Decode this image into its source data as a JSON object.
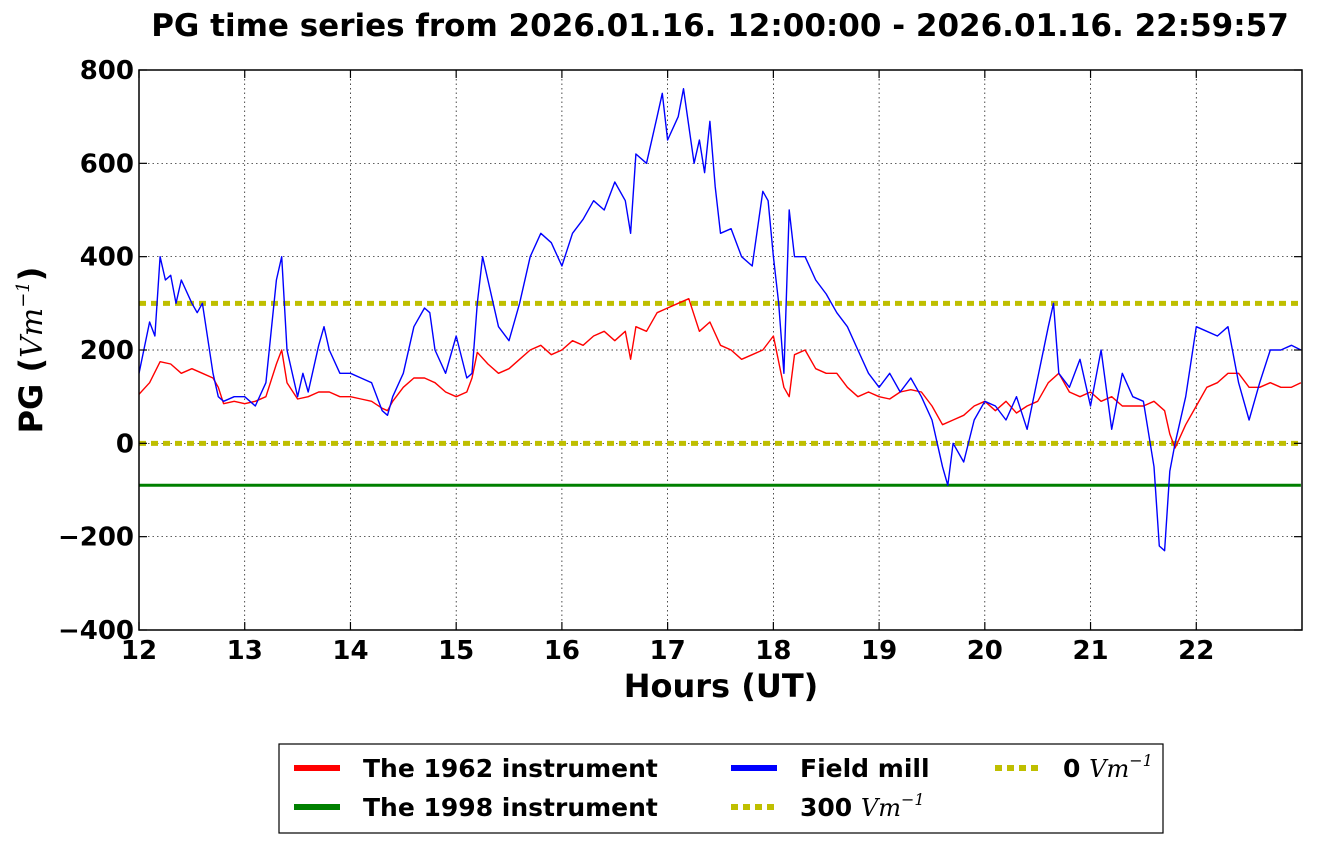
{
  "chart_data": {
    "type": "line",
    "title": "PG time series from 2026.01.16. 12:00:00 - 2026.01.16. 22:59:57",
    "xlabel": "Hours (UT)",
    "ylabel_prefix": "PG (",
    "ylabel_unit_base": "Vm",
    "ylabel_unit_exp": "−1",
    "ylabel_suffix": ")",
    "xlim": [
      12,
      23
    ],
    "ylim": [
      -400,
      800
    ],
    "xticks": [
      12,
      13,
      14,
      15,
      16,
      17,
      18,
      19,
      20,
      21,
      22
    ],
    "yticks": [
      -400,
      -200,
      0,
      200,
      400,
      600,
      800
    ],
    "xtick_labels": [
      "12",
      "13",
      "14",
      "15",
      "16",
      "17",
      "18",
      "19",
      "20",
      "21",
      "22"
    ],
    "ytick_labels": [
      "−400",
      "−200",
      "0",
      "200",
      "400",
      "600",
      "800"
    ],
    "grid": true,
    "legend_position": "bottom-center",
    "series": [
      {
        "name": "The 1962 instrument",
        "color": "#ff0000",
        "x": [
          12.0,
          12.1,
          12.2,
          12.3,
          12.4,
          12.5,
          12.6,
          12.7,
          12.75,
          12.8,
          12.9,
          13.0,
          13.1,
          13.2,
          13.3,
          13.35,
          13.4,
          13.5,
          13.6,
          13.7,
          13.8,
          13.9,
          14.0,
          14.1,
          14.2,
          14.3,
          14.35,
          14.4,
          14.5,
          14.6,
          14.7,
          14.8,
          14.9,
          15.0,
          15.1,
          15.15,
          15.2,
          15.3,
          15.4,
          15.5,
          15.6,
          15.7,
          15.8,
          15.9,
          16.0,
          16.1,
          16.2,
          16.3,
          16.4,
          16.5,
          16.6,
          16.65,
          16.7,
          16.8,
          16.9,
          17.0,
          17.1,
          17.2,
          17.3,
          17.4,
          17.5,
          17.6,
          17.7,
          17.8,
          17.9,
          18.0,
          18.1,
          18.15,
          18.2,
          18.3,
          18.4,
          18.5,
          18.6,
          18.7,
          18.8,
          18.9,
          19.0,
          19.1,
          19.2,
          19.3,
          19.4,
          19.5,
          19.6,
          19.7,
          19.8,
          19.9,
          20.0,
          20.1,
          20.2,
          20.3,
          20.4,
          20.5,
          20.6,
          20.7,
          20.8,
          20.9,
          21.0,
          21.1,
          21.2,
          21.3,
          21.4,
          21.5,
          21.6,
          21.7,
          21.75,
          21.8,
          21.9,
          22.0,
          22.1,
          22.2,
          22.3,
          22.4,
          22.5,
          22.6,
          22.7,
          22.8,
          22.9,
          22.99
        ],
        "y": [
          105,
          130,
          175,
          170,
          150,
          160,
          150,
          140,
          120,
          85,
          90,
          85,
          90,
          100,
          170,
          200,
          130,
          95,
          100,
          110,
          110,
          100,
          100,
          95,
          90,
          75,
          70,
          90,
          120,
          140,
          140,
          130,
          110,
          100,
          110,
          140,
          195,
          170,
          150,
          160,
          180,
          200,
          210,
          190,
          200,
          220,
          210,
          230,
          240,
          220,
          240,
          180,
          250,
          240,
          280,
          290,
          300,
          310,
          240,
          260,
          210,
          200,
          180,
          190,
          200,
          230,
          120,
          100,
          190,
          200,
          160,
          150,
          150,
          120,
          100,
          110,
          100,
          95,
          110,
          115,
          110,
          80,
          40,
          50,
          60,
          80,
          90,
          70,
          90,
          65,
          80,
          90,
          130,
          150,
          110,
          100,
          110,
          90,
          100,
          80,
          80,
          80,
          90,
          70,
          20,
          -10,
          40,
          80,
          120,
          130,
          150,
          150,
          120,
          120,
          130,
          120,
          120,
          130
        ]
      },
      {
        "name": "The 1998 instrument",
        "color": "#008000",
        "x": [
          12.0,
          22.99
        ],
        "y": [
          -90,
          -90
        ]
      },
      {
        "name": "Field mill",
        "color": "#0000ff",
        "x": [
          12.0,
          12.1,
          12.15,
          12.2,
          12.25,
          12.3,
          12.35,
          12.4,
          12.5,
          12.55,
          12.6,
          12.7,
          12.75,
          12.8,
          12.9,
          13.0,
          13.1,
          13.2,
          13.3,
          13.35,
          13.4,
          13.5,
          13.55,
          13.6,
          13.7,
          13.75,
          13.8,
          13.9,
          14.0,
          14.1,
          14.2,
          14.3,
          14.35,
          14.4,
          14.5,
          14.6,
          14.7,
          14.75,
          14.8,
          14.9,
          15.0,
          15.1,
          15.15,
          15.2,
          15.25,
          15.3,
          15.4,
          15.5,
          15.6,
          15.7,
          15.8,
          15.9,
          16.0,
          16.1,
          16.2,
          16.3,
          16.4,
          16.5,
          16.6,
          16.65,
          16.7,
          16.8,
          16.9,
          16.95,
          17.0,
          17.1,
          17.15,
          17.2,
          17.25,
          17.3,
          17.35,
          17.4,
          17.45,
          17.5,
          17.6,
          17.7,
          17.8,
          17.9,
          17.95,
          18.0,
          18.05,
          18.1,
          18.15,
          18.2,
          18.3,
          18.4,
          18.5,
          18.6,
          18.7,
          18.8,
          18.9,
          19.0,
          19.1,
          19.2,
          19.3,
          19.4,
          19.5,
          19.6,
          19.65,
          19.7,
          19.8,
          19.9,
          20.0,
          20.1,
          20.2,
          20.3,
          20.4,
          20.5,
          20.6,
          20.65,
          20.7,
          20.8,
          20.9,
          21.0,
          21.1,
          21.2,
          21.3,
          21.4,
          21.5,
          21.6,
          21.65,
          21.7,
          21.75,
          21.8,
          21.9,
          22.0,
          22.1,
          22.2,
          22.3,
          22.4,
          22.5,
          22.6,
          22.7,
          22.8,
          22.9,
          22.99
        ],
        "y": [
          150,
          260,
          230,
          400,
          350,
          360,
          300,
          350,
          300,
          280,
          300,
          150,
          100,
          90,
          100,
          100,
          80,
          130,
          350,
          400,
          200,
          100,
          150,
          110,
          210,
          250,
          200,
          150,
          150,
          140,
          130,
          70,
          60,
          100,
          150,
          250,
          290,
          280,
          200,
          150,
          230,
          140,
          150,
          300,
          400,
          350,
          250,
          220,
          300,
          400,
          450,
          430,
          380,
          450,
          480,
          520,
          500,
          560,
          520,
          450,
          620,
          600,
          700,
          750,
          650,
          700,
          760,
          680,
          600,
          650,
          580,
          690,
          550,
          450,
          460,
          400,
          380,
          540,
          520,
          400,
          300,
          150,
          500,
          400,
          400,
          350,
          320,
          280,
          250,
          200,
          150,
          120,
          150,
          110,
          140,
          100,
          50,
          -50,
          -90,
          0,
          -40,
          50,
          90,
          80,
          50,
          100,
          30,
          140,
          250,
          300,
          150,
          120,
          180,
          80,
          200,
          30,
          150,
          100,
          90,
          -50,
          -220,
          -230,
          -60,
          0,
          100,
          250,
          240,
          230,
          250,
          130,
          50,
          130,
          200,
          200,
          210,
          200
        ]
      }
    ],
    "reference_lines": [
      {
        "name_num": "300",
        "unit_base": "Vm",
        "unit_exp": "−1",
        "y": 300,
        "color": "#bfbf00"
      },
      {
        "name_num": "0",
        "unit_base": "Vm",
        "unit_exp": "−1",
        "y": 0,
        "color": "#bfbf00"
      }
    ]
  }
}
